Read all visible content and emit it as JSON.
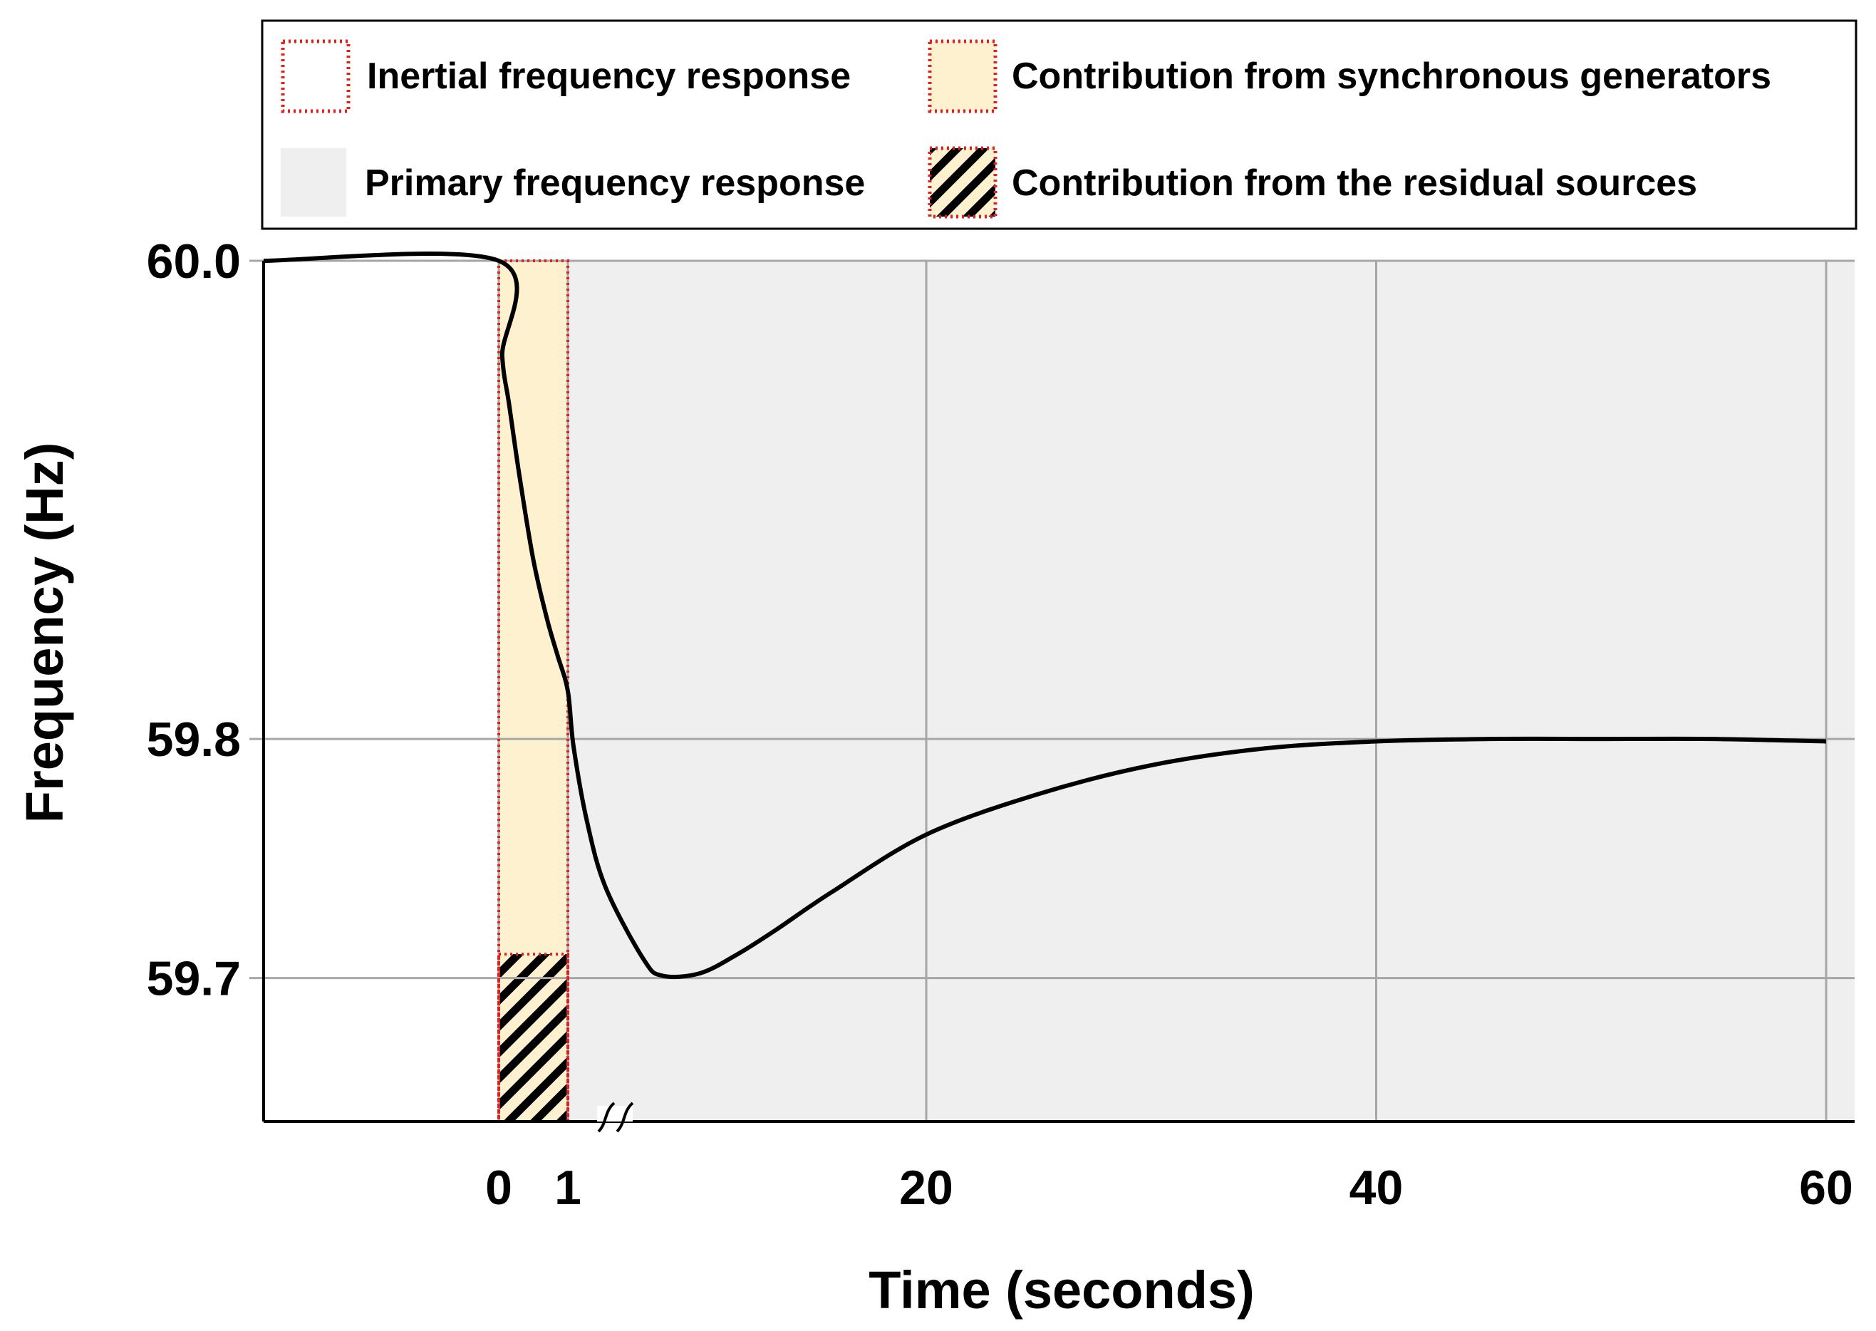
{
  "chart_data": {
    "type": "line",
    "xlabel": "Time (seconds)",
    "ylabel": "Frequency (Hz)",
    "x_ticks": [
      "0",
      "1",
      "20",
      "40",
      "60"
    ],
    "y_ticks": [
      "60.0",
      "59.8",
      "59.7"
    ],
    "x_tick_values": [
      0,
      1,
      20,
      40,
      60
    ],
    "y_tick_values": [
      60.0,
      59.8,
      59.7
    ],
    "ylim": [
      59.64,
      60.0
    ],
    "xlim": [
      -10.5,
      61.2
    ],
    "axis_break": "between 1 and 20 seconds",
    "grid": true,
    "series": [
      {
        "name": "Frequency",
        "x": [
          -10.5,
          0,
          0.05,
          0.15,
          0.3,
          0.5,
          0.7,
          0.85,
          1.0,
          1.3,
          2,
          3,
          5,
          6,
          8,
          10,
          12,
          15,
          20,
          25,
          30,
          35,
          40,
          45,
          50,
          55,
          60
        ],
        "y": [
          60.0,
          60.0,
          59.96,
          59.94,
          59.91,
          59.875,
          59.85,
          59.835,
          59.82,
          59.797,
          59.766,
          59.738,
          59.708,
          59.701,
          59.702,
          59.71,
          59.72,
          59.736,
          59.76,
          59.777,
          59.789,
          59.796,
          59.799,
          59.8,
          59.8,
          59.8,
          59.799
        ]
      }
    ],
    "shaded_regions": [
      {
        "name": "Inertial frequency response",
        "x_range": [
          0,
          1
        ],
        "style": "red dotted outline"
      },
      {
        "name": "Contribution from synchronous generators",
        "x_range": [
          0,
          1
        ],
        "y_range": [
          59.71,
          60.0
        ],
        "color": "#fdf1cf"
      },
      {
        "name": "Contribution from the residual sources",
        "x_range": [
          0,
          1
        ],
        "y_range": [
          59.64,
          59.71
        ],
        "style": "black diagonal hatch on yellow"
      },
      {
        "name": "Primary frequency response",
        "x_range": [
          1,
          61.2
        ],
        "color": "#efefef"
      }
    ],
    "legend": {
      "position": "top",
      "entries": [
        {
          "label": "Inertial frequency response",
          "swatch": "red-dotted-box"
        },
        {
          "label": "Contribution from synchronous generators",
          "swatch": "yellow-fill-red-dotted"
        },
        {
          "label": "Primary frequency response",
          "swatch": "gray-fill"
        },
        {
          "label": "Contribution from the residual sources",
          "swatch": "hatched-red-dotted"
        }
      ]
    },
    "colors": {
      "line": "#000000",
      "grid": "#a6a6a6",
      "primary_fill": "#efefef",
      "synchronous_fill": "#fdf1cf",
      "dotted_border": "#e0201c"
    }
  }
}
